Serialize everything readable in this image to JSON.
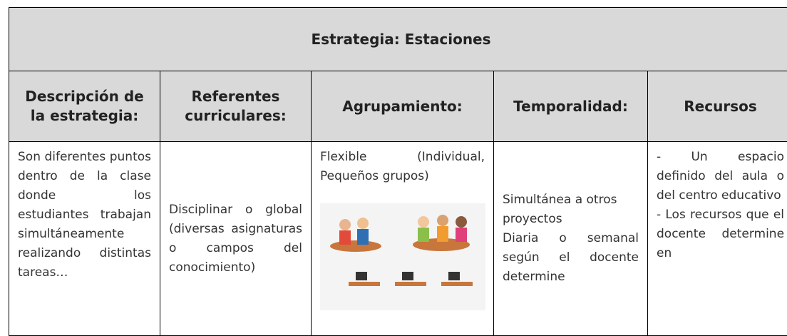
{
  "header": {
    "title": "Estrategia: Estaciones"
  },
  "table": {
    "headers": [
      "Descripción de la estrategia:",
      "Referentes curriculares:",
      "Agrupamiento:",
      "Temporalidad:",
      "Recursos"
    ],
    "rows": [
      [
        "Son diferentes puntos dentro de la clase donde los estudiantes trabajan simultáneamente realizando distintas tareas…",
        "Disciplinar o global (diversas asignaturas o campos del conocimiento)",
        "Flexible (Individual, Pequeños grupos)",
        [
          "Simultánea a otros proyectos",
          "Diaria o semanal según el docente determine"
        ],
        [
          "- Un espacio definido del aula o del centro educativo",
          "- Los recursos que el docente determine en"
        ]
      ]
    ]
  }
}
